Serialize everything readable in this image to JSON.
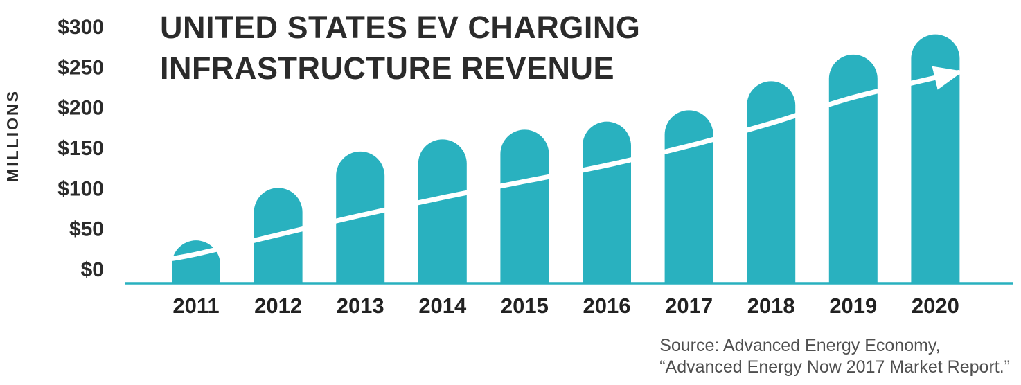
{
  "title": {
    "line1": "UNITED STATES EV CHARGING",
    "line2": "INFRASTRUCTURE REVENUE"
  },
  "source": {
    "line1": "Source: Advanced Energy Economy,",
    "line2": "“Advanced Energy Now 2017 Market Report.”"
  },
  "chart_data": {
    "type": "bar",
    "title": "United States EV Charging Infrastructure Revenue",
    "units": "millions USD",
    "categories": [
      "2011",
      "2012",
      "2013",
      "2014",
      "2015",
      "2016",
      "2017",
      "2018",
      "2019",
      "2020"
    ],
    "values": [
      35,
      100,
      145,
      160,
      172,
      182,
      196,
      232,
      265,
      290
    ],
    "ylabel": "MILLIONS",
    "xlabel": "",
    "ylim": [
      0,
      300
    ],
    "grid": false,
    "legend": "none",
    "yticks": {
      "labels": [
        "$0",
        "$50",
        "$100",
        "$150",
        "$200",
        "$250",
        "$300"
      ],
      "values": [
        0,
        50,
        100,
        150,
        200,
        250,
        300
      ]
    },
    "bar_color": "#29b1bf",
    "axis_color": "#29b1bf",
    "text_color": "#2b2b2b",
    "trendline": {
      "color": "#ffffff",
      "description": "white upward-curving trend arrow drawn across the bars",
      "points": [
        {
          "i": -0.45,
          "v": 10
        },
        {
          "i": 0,
          "v": 18
        },
        {
          "i": 1,
          "v": 42
        },
        {
          "i": 2,
          "v": 66
        },
        {
          "i": 3,
          "v": 88
        },
        {
          "i": 4,
          "v": 108
        },
        {
          "i": 5,
          "v": 128
        },
        {
          "i": 6,
          "v": 152
        },
        {
          "i": 7,
          "v": 180
        },
        {
          "i": 8,
          "v": 212
        },
        {
          "i": 9.28,
          "v": 243
        }
      ]
    }
  }
}
